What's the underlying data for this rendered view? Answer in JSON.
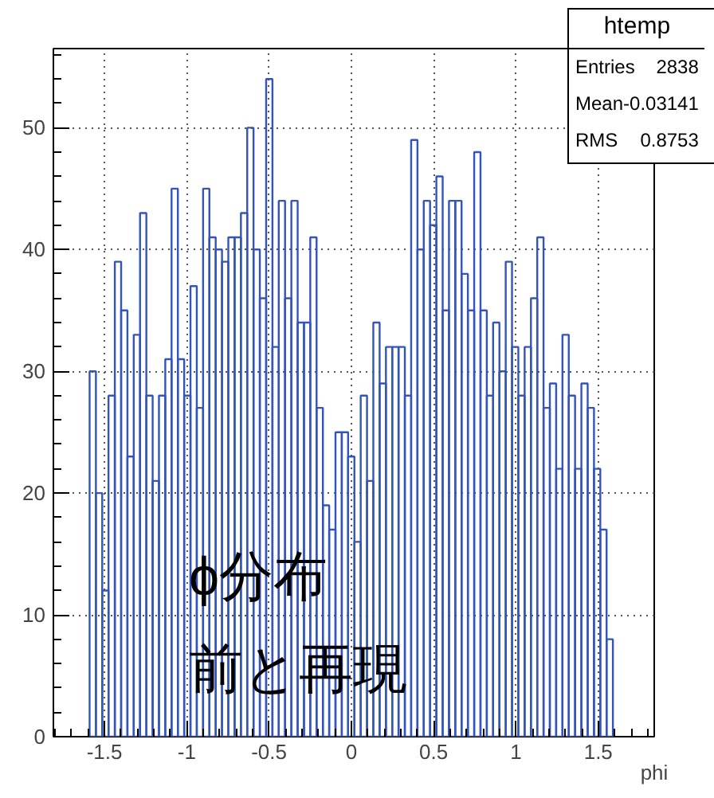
{
  "chart_data": {
    "type": "histogram",
    "xlabel": "phi",
    "bins": [
      -1.59,
      -1.5517,
      -1.5134,
      -1.4751,
      -1.4368,
      -1.3985,
      -1.3602,
      -1.3219,
      -1.2836,
      -1.2453,
      -1.207,
      -1.1687,
      -1.1304,
      -1.0921,
      -1.0538,
      -1.0155,
      -0.9772,
      -0.9389,
      -0.9006,
      -0.8623,
      -0.824,
      -0.7857,
      -0.7474,
      -0.7091,
      -0.6708,
      -0.6325,
      -0.5942,
      -0.5559,
      -0.5176,
      -0.4793,
      -0.441,
      -0.4027,
      -0.3644,
      -0.3261,
      -0.2878,
      -0.2495,
      -0.2112,
      -0.1729,
      -0.1346,
      -0.0963,
      -0.058,
      -0.0197,
      0.0186,
      0.0569,
      0.0952,
      0.1335,
      0.1718,
      0.2101,
      0.2484,
      0.2867,
      0.325,
      0.3633,
      0.4016,
      0.4399,
      0.4782,
      0.5165,
      0.5548,
      0.5931,
      0.6314,
      0.6697,
      0.708,
      0.7463,
      0.7846,
      0.8229,
      0.8612,
      0.8995,
      0.9378,
      0.9761,
      1.0144,
      1.0527,
      1.091,
      1.1293,
      1.1676,
      1.2059,
      1.2442,
      1.2825,
      1.3208,
      1.3591,
      1.3974,
      1.4357,
      1.474,
      1.5123,
      1.5506,
      1.5889
    ],
    "values": [
      30,
      20,
      12,
      28,
      39,
      35,
      23,
      33,
      43,
      28,
      21,
      28,
      31,
      45,
      31,
      28,
      37,
      27,
      45,
      41,
      40,
      39,
      41,
      41,
      43,
      50,
      40,
      36,
      54,
      32,
      44,
      36,
      44,
      34,
      34,
      41,
      27,
      19,
      17,
      25,
      25,
      23,
      16,
      28,
      21,
      34,
      29,
      32,
      32,
      32,
      28,
      49,
      40,
      44,
      42,
      46,
      35,
      44,
      44,
      38,
      35,
      48,
      35,
      28,
      34,
      30,
      39,
      32,
      28,
      32,
      36,
      41,
      27,
      29,
      22,
      33,
      28,
      22,
      29,
      27,
      22,
      17,
      8
    ],
    "color": "#3355bb",
    "xlim": [
      -1.81,
      1.84
    ],
    "ylim": [
      0,
      56.5
    ],
    "xticks": [
      {
        "value": -1.5,
        "label": "-1.5"
      },
      -1,
      {
        "value": -0.5,
        "label": "-0.5"
      },
      0,
      0.5,
      1,
      1.5
    ],
    "yticks": [
      0,
      10,
      20,
      30,
      40,
      50
    ],
    "grid": true,
    "annotations": [
      "htemp",
      "Entries",
      "2838",
      "Mean",
      "-0.03141",
      "RMS",
      "0.8753",
      "ϕ分布",
      "前と再現"
    ]
  }
}
